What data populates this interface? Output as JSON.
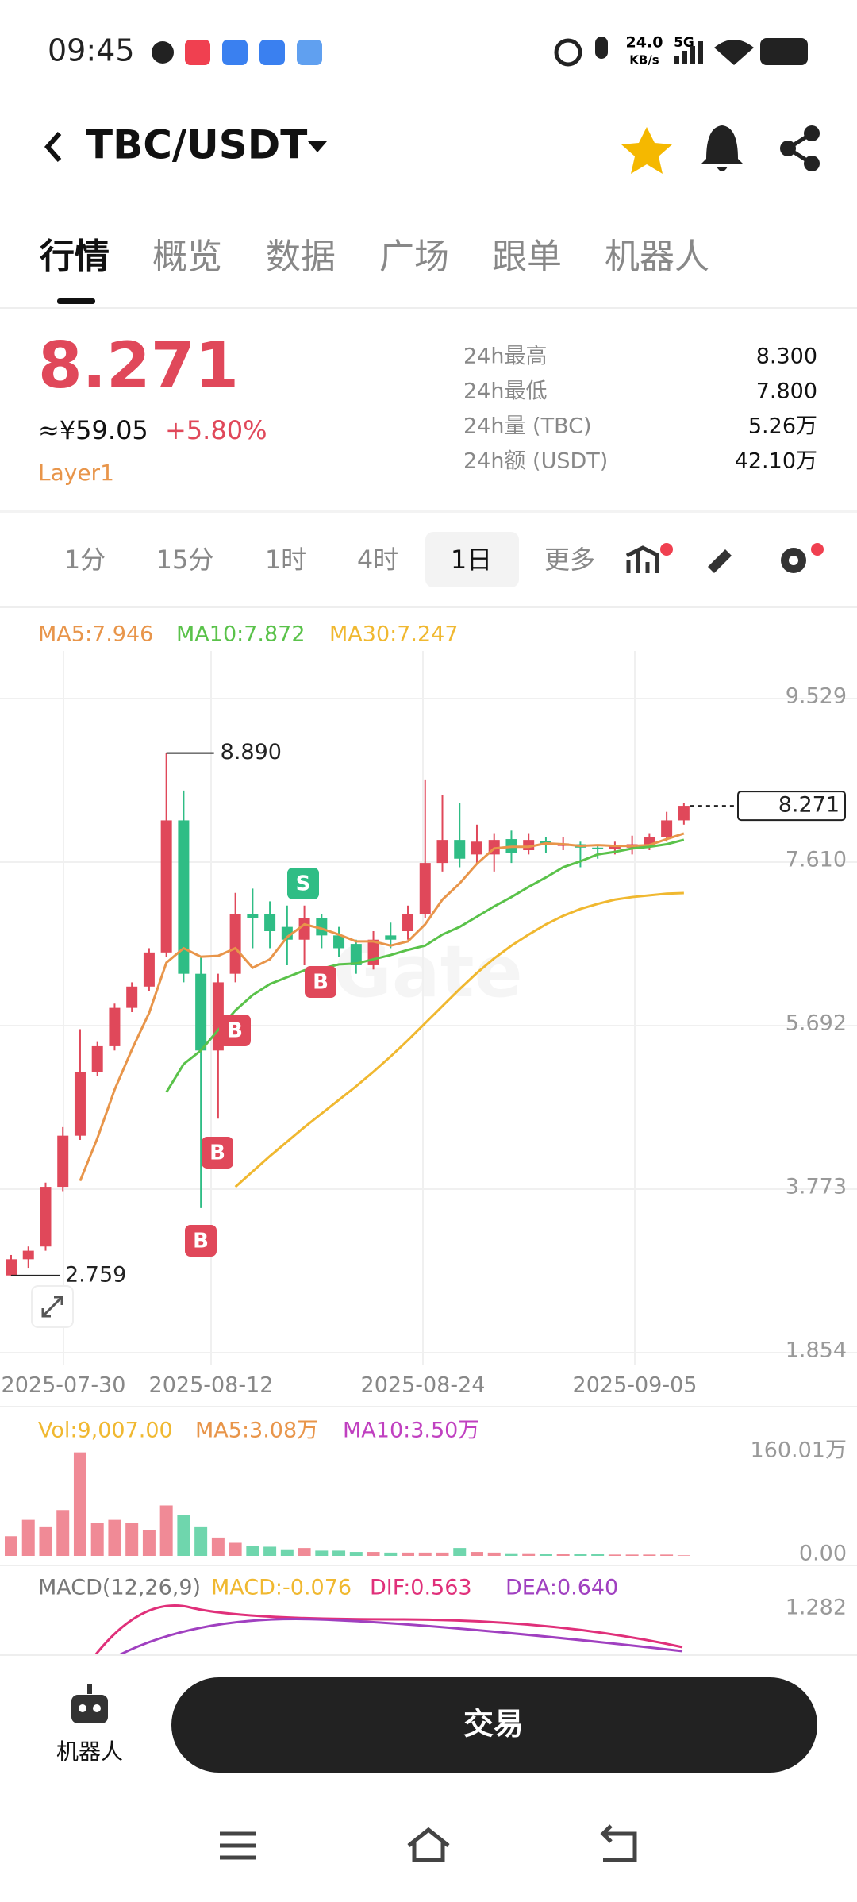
{
  "status": {
    "time": "09:45",
    "speed": "24.0",
    "unit": "KB/s",
    "net": "5G"
  },
  "header": {
    "pair": "TBC/USDT"
  },
  "tabs": [
    "行情",
    "概览",
    "数据",
    "广场",
    "跟单",
    "机器人"
  ],
  "ticker": {
    "price": "8.271",
    "cny": "≈¥59.05",
    "change": "+5.80%",
    "tag": "Layer1",
    "stats": [
      {
        "label": "24h最高",
        "value": "8.300"
      },
      {
        "label": "24h最低",
        "value": "7.800"
      },
      {
        "label": "24h量 (TBC)",
        "value": "5.26万"
      },
      {
        "label": "24h额 (USDT)",
        "value": "42.10万"
      }
    ]
  },
  "intervals": [
    "1分",
    "15分",
    "1时",
    "4时",
    "1日",
    "更多"
  ],
  "chart_data": [
    {
      "type": "candlestick",
      "open": [
        2.76,
        2.95,
        3.1,
        3.8,
        4.4,
        5.15,
        5.45,
        5.9,
        6.15,
        6.55,
        8.1,
        6.3,
        5.4,
        6.3,
        7.0,
        7.0,
        6.85,
        6.7,
        6.95,
        6.75,
        6.65,
        6.4,
        6.75,
        6.8,
        7.0,
        7.6,
        7.87,
        7.7,
        7.7,
        7.88,
        7.75,
        7.86,
        7.8,
        7.82,
        7.78,
        7.76,
        7.78,
        7.8,
        7.9,
        8.1
      ],
      "high": [
        3.0,
        3.1,
        3.85,
        4.5,
        5.65,
        5.5,
        5.95,
        6.2,
        6.6,
        8.89,
        8.45,
        6.5,
        6.3,
        7.25,
        7.3,
        7.15,
        7.1,
        7.1,
        7.0,
        6.85,
        6.7,
        6.8,
        6.9,
        7.1,
        8.58,
        8.4,
        8.3,
        8.05,
        7.95,
        7.98,
        7.95,
        7.9,
        7.9,
        7.85,
        7.82,
        7.85,
        7.92,
        7.95,
        8.2,
        8.3
      ],
      "low": [
        2.759,
        2.85,
        3.05,
        3.75,
        4.35,
        5.1,
        5.4,
        5.85,
        6.1,
        6.5,
        6.2,
        3.55,
        4.6,
        6.2,
        6.6,
        6.6,
        6.4,
        6.4,
        6.6,
        6.5,
        6.3,
        6.35,
        6.6,
        6.7,
        6.95,
        7.5,
        7.55,
        7.6,
        7.5,
        7.6,
        7.7,
        7.72,
        7.75,
        7.55,
        7.65,
        7.7,
        7.7,
        7.75,
        7.85,
        8.05
      ],
      "close": [
        2.95,
        3.05,
        3.8,
        4.4,
        5.15,
        5.45,
        5.9,
        6.15,
        6.55,
        8.1,
        6.3,
        5.4,
        6.2,
        7.0,
        6.95,
        6.8,
        6.7,
        6.95,
        6.75,
        6.6,
        6.4,
        6.7,
        6.7,
        7.0,
        7.6,
        7.87,
        7.65,
        7.85,
        7.87,
        7.72,
        7.87,
        7.82,
        7.83,
        7.78,
        7.76,
        7.8,
        7.82,
        7.9,
        8.1,
        8.271
      ],
      "series": [
        {
          "name": "MA5:7.946",
          "color": "#e8954a",
          "values": [
            null,
            null,
            null,
            null,
            3.87,
            4.37,
            4.94,
            5.41,
            5.84,
            6.43,
            6.6,
            6.5,
            6.51,
            6.6,
            6.37,
            6.47,
            6.73,
            6.88,
            6.83,
            6.76,
            6.68,
            6.68,
            6.63,
            6.68,
            6.88,
            7.17,
            7.36,
            7.59,
            7.77,
            7.79,
            7.79,
            7.83,
            7.82,
            7.8,
            7.81,
            7.8,
            7.8,
            7.81,
            7.88,
            7.946
          ]
        },
        {
          "name": "MA10:7.872",
          "color": "#5ac24a",
          "values": [
            null,
            null,
            null,
            null,
            null,
            null,
            null,
            null,
            null,
            4.91,
            5.24,
            5.4,
            5.64,
            5.87,
            6.05,
            6.18,
            6.26,
            6.34,
            6.36,
            6.41,
            6.42,
            6.47,
            6.52,
            6.58,
            6.63,
            6.76,
            6.85,
            6.97,
            7.09,
            7.2,
            7.32,
            7.43,
            7.55,
            7.62,
            7.7,
            7.73,
            7.77,
            7.79,
            7.82,
            7.872
          ]
        },
        {
          "name": "MA30:7.247",
          "color": "#f0b830",
          "values": [
            null,
            null,
            null,
            null,
            null,
            null,
            null,
            null,
            null,
            null,
            null,
            null,
            null,
            3.8,
            3.98,
            4.16,
            4.33,
            4.5,
            4.66,
            4.82,
            4.98,
            5.15,
            5.33,
            5.52,
            5.72,
            5.92,
            6.12,
            6.31,
            6.48,
            6.63,
            6.76,
            6.88,
            6.98,
            7.06,
            7.12,
            7.17,
            7.2,
            7.22,
            7.24,
            7.247
          ]
        }
      ],
      "ylim": [
        1.705,
        10.088
      ],
      "yticks": [
        1.854,
        3.773,
        5.692,
        {
          "value": 7.61,
          "label": "7.610"
        },
        9.529
      ],
      "xlabels": [
        "2025-07-30",
        "2025-08-12",
        "2025-08-24",
        "2025-09-05"
      ],
      "max_label": "8.890",
      "min_label": "2.759",
      "last_label": "8.271",
      "markers": [
        "S",
        "B",
        "B",
        "B",
        "B"
      ],
      "up_color": "#e0485a",
      "down_color": "#2fbd85",
      "grid": true
    },
    {
      "type": "bar",
      "series": [
        {
          "name": "Vol:9,007.00",
          "color": "#f0b830",
          "values": [
            30,
            55,
            45,
            70,
            158,
            50,
            55,
            50,
            40,
            77,
            62,
            45,
            28,
            20,
            15,
            14,
            10,
            12,
            8,
            8,
            6,
            6,
            5,
            5,
            5,
            5,
            12,
            6,
            5,
            4,
            4,
            3,
            3,
            3,
            3,
            2,
            2,
            2,
            2,
            0.9007
          ]
        }
      ],
      "legend": [
        {
          "name": "MA5:3.08万",
          "color": "#e8954a"
        },
        {
          "name": "MA10:3.50万",
          "color": "#c040c0"
        }
      ],
      "ylim": [
        0,
        160.01
      ],
      "yticks": [
        {
          "value": 0,
          "label": "0.00"
        },
        {
          "value": 160.01,
          "label": "160.01万"
        }
      ]
    },
    {
      "type": "macd",
      "legend": [
        {
          "name": "MACD(12,26,9)",
          "color": "#777"
        },
        {
          "name": "MACD:-0.076",
          "color": "#f0b830"
        },
        {
          "name": "DIF:0.563",
          "color": "#e0307a"
        },
        {
          "name": "DEA:0.640",
          "color": "#a040c0"
        }
      ],
      "ytick_label": "1.282"
    }
  ],
  "bottom": {
    "robot": "机器人",
    "trade": "交易"
  }
}
